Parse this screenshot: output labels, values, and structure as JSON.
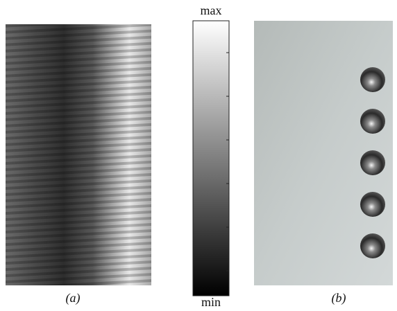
{
  "panels": {
    "a": {
      "caption": "(a)"
    },
    "b": {
      "caption": "(b)"
    }
  },
  "colorbar": {
    "max_label": "max",
    "min_label": "min"
  }
}
